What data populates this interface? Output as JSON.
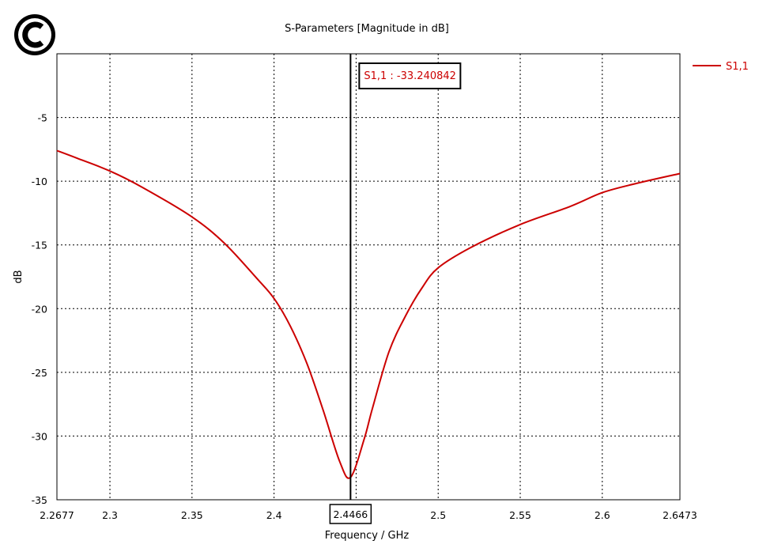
{
  "logo": {
    "name": "cst-logo"
  },
  "chart_data": {
    "type": "line",
    "title": "S-Parameters [Magnitude in dB]",
    "xlabel": "Frequency / GHz",
    "ylabel": "dB",
    "xlim": [
      2.2677,
      2.6473
    ],
    "ylim": [
      -35,
      0
    ],
    "grid": true,
    "legend_position": "top-right",
    "x_ticks": [
      2.2677,
      2.3,
      2.35,
      2.4,
      2.4466,
      2.45,
      2.5,
      2.55,
      2.6,
      2.6473
    ],
    "x_tick_labels": [
      "2.2677",
      "2.3",
      "2.35",
      "2.4",
      "2.4466",
      "2.5",
      "2.55",
      "2.6",
      "2.6473"
    ],
    "y_ticks": [
      -35,
      -30,
      -25,
      -20,
      -15,
      -10,
      -5
    ],
    "y_tick_labels": [
      "-35",
      "-30",
      "-25",
      "-20",
      "-15",
      "-10",
      "-5"
    ],
    "series": [
      {
        "name": "S1,1",
        "color": "#cc0000",
        "x": [
          2.2677,
          2.28,
          2.3,
          2.32,
          2.35,
          2.37,
          2.39,
          2.4,
          2.41,
          2.42,
          2.43,
          2.44,
          2.4466,
          2.455,
          2.46,
          2.47,
          2.48,
          2.49,
          2.5,
          2.52,
          2.55,
          2.58,
          2.6,
          2.62,
          2.6473
        ],
        "y": [
          -7.6,
          -8.2,
          -9.2,
          -10.5,
          -12.8,
          -14.9,
          -17.7,
          -19.2,
          -21.4,
          -24.3,
          -28.0,
          -32.0,
          -33.24,
          -30.2,
          -27.8,
          -23.4,
          -20.6,
          -18.4,
          -16.8,
          -15.2,
          -13.4,
          -12.0,
          -10.9,
          -10.2,
          -9.4
        ]
      }
    ],
    "marker": {
      "x": 2.4466,
      "label": "S1,1 : -33.240842",
      "x_label": "2.4466"
    }
  },
  "colors": {
    "series": "#cc0000",
    "marker_line": "#000000"
  }
}
